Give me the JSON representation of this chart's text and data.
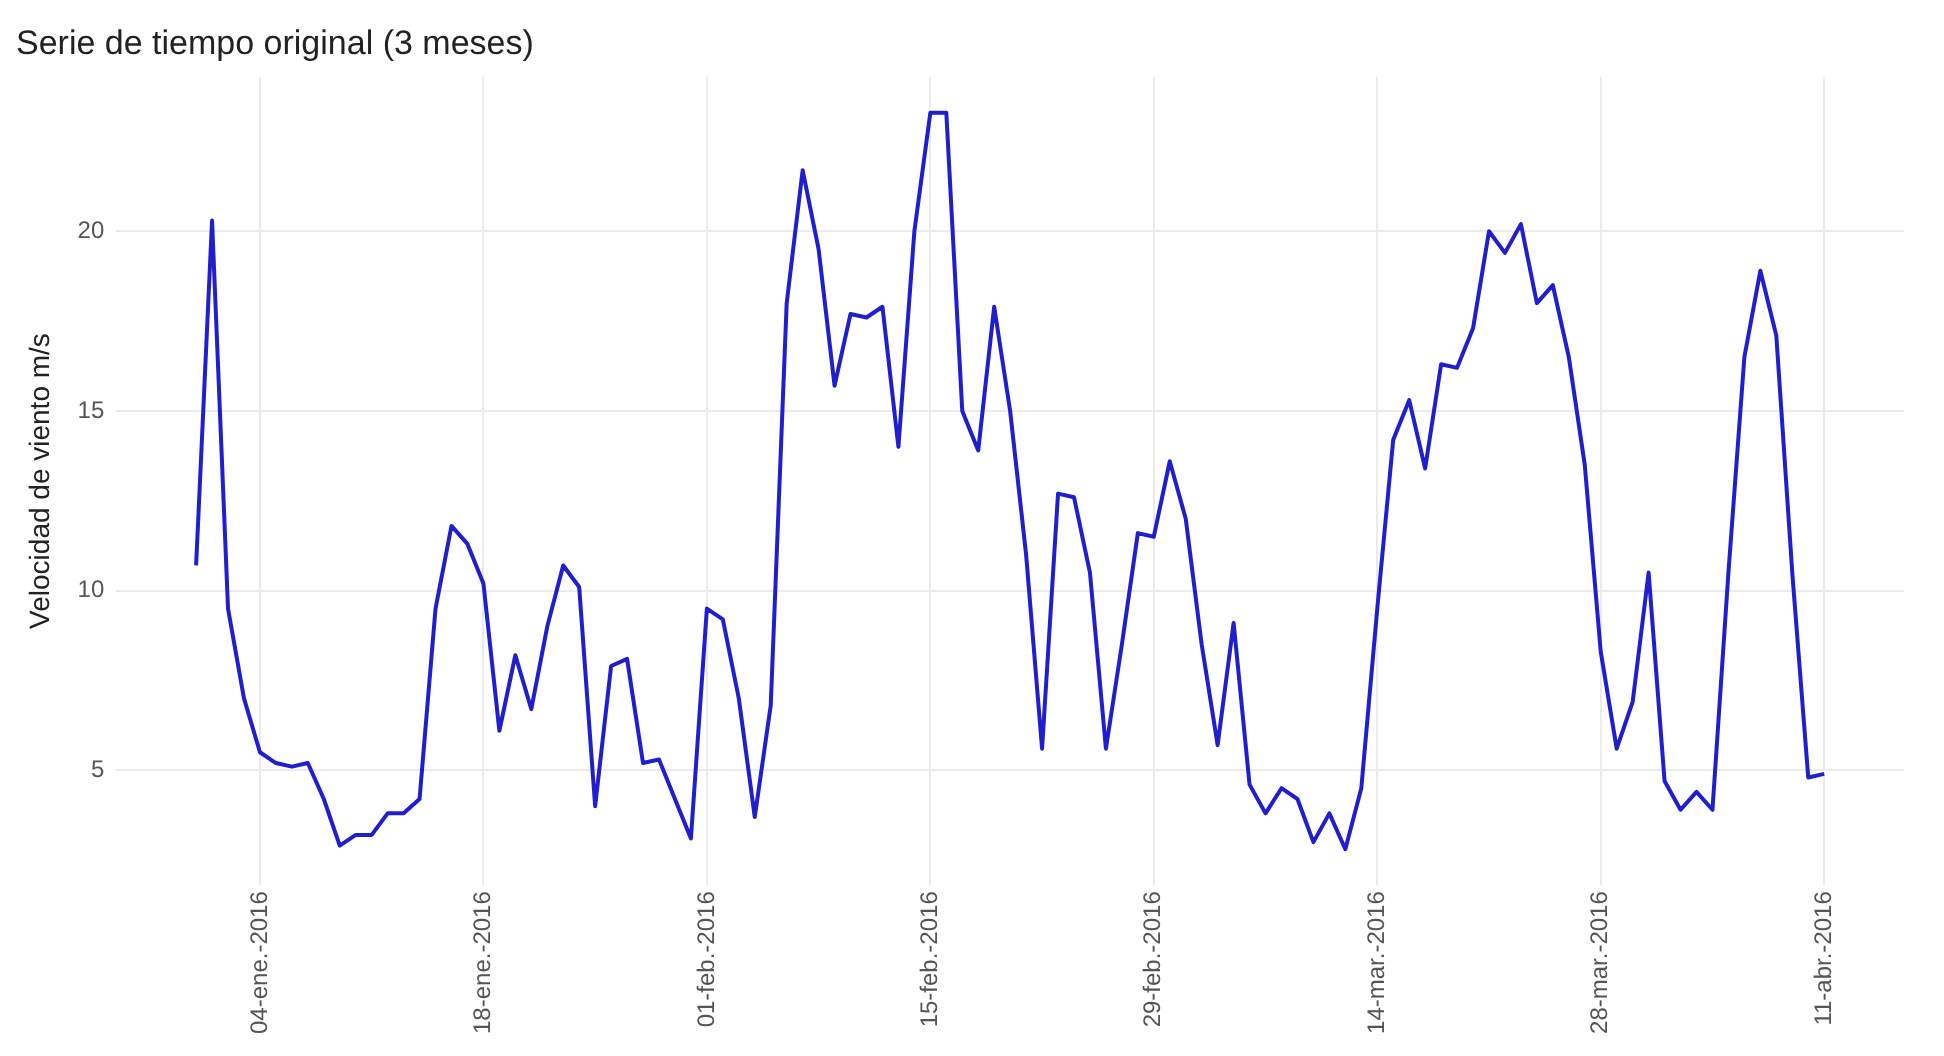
{
  "chart_data": {
    "type": "line",
    "title": "Serie de tiempo original (3 meses)",
    "ylabel": "Velocidad de viento m/s",
    "x": [
      "2015-12-31",
      "2016-01-01",
      "2016-01-02",
      "2016-01-03",
      "2016-01-04",
      "2016-01-05",
      "2016-01-06",
      "2016-01-07",
      "2016-01-08",
      "2016-01-09",
      "2016-01-10",
      "2016-01-11",
      "2016-01-12",
      "2016-01-13",
      "2016-01-14",
      "2016-01-15",
      "2016-01-16",
      "2016-01-17",
      "2016-01-18",
      "2016-01-19",
      "2016-01-20",
      "2016-01-21",
      "2016-01-22",
      "2016-01-23",
      "2016-01-24",
      "2016-01-25",
      "2016-01-26",
      "2016-01-27",
      "2016-01-28",
      "2016-01-29",
      "2016-01-30",
      "2016-01-31",
      "2016-02-01",
      "2016-02-02",
      "2016-02-03",
      "2016-02-04",
      "2016-02-05",
      "2016-02-06",
      "2016-02-07",
      "2016-02-08",
      "2016-02-09",
      "2016-02-10",
      "2016-02-11",
      "2016-02-12",
      "2016-02-13",
      "2016-02-14",
      "2016-02-15",
      "2016-02-16",
      "2016-02-17",
      "2016-02-18",
      "2016-02-19",
      "2016-02-20",
      "2016-02-21",
      "2016-02-22",
      "2016-02-23",
      "2016-02-24",
      "2016-02-25",
      "2016-02-26",
      "2016-02-27",
      "2016-02-28",
      "2016-02-29",
      "2016-03-01",
      "2016-03-02",
      "2016-03-03",
      "2016-03-04",
      "2016-03-05",
      "2016-03-06",
      "2016-03-07",
      "2016-03-08",
      "2016-03-09",
      "2016-03-10",
      "2016-03-11",
      "2016-03-12",
      "2016-03-13",
      "2016-03-14",
      "2016-03-15",
      "2016-03-16",
      "2016-03-17",
      "2016-03-18",
      "2016-03-19",
      "2016-03-20",
      "2016-03-21",
      "2016-03-22",
      "2016-03-23",
      "2016-03-24",
      "2016-03-25",
      "2016-03-26",
      "2016-03-27",
      "2016-03-28",
      "2016-03-29",
      "2016-03-30",
      "2016-03-31",
      "2016-04-01",
      "2016-04-02",
      "2016-04-03",
      "2016-04-04",
      "2016-04-05",
      "2016-04-06",
      "2016-04-07",
      "2016-04-08",
      "2016-04-09",
      "2016-04-10",
      "2016-04-11"
    ],
    "series": [
      {
        "color": "#1f1fd0",
        "values": [
          10.7,
          20.3,
          9.5,
          7.0,
          5.5,
          5.2,
          5.1,
          5.2,
          4.2,
          2.9,
          3.2,
          3.2,
          3.8,
          3.8,
          4.2,
          9.5,
          11.8,
          11.3,
          10.2,
          6.1,
          8.2,
          6.7,
          9.0,
          10.7,
          10.1,
          4.0,
          7.9,
          8.1,
          5.2,
          5.3,
          4.2,
          3.1,
          9.5,
          9.2,
          7.0,
          3.7,
          6.8,
          18.0,
          21.7,
          19.5,
          15.7,
          17.7,
          17.6,
          17.9,
          14.0,
          20.0,
          23.3,
          23.3,
          15.0,
          13.9,
          17.9,
          15.0,
          11.0,
          5.6,
          12.7,
          12.6,
          10.5,
          5.6,
          8.5,
          11.6,
          11.5,
          13.6,
          12.0,
          8.5,
          5.7,
          9.1,
          4.6,
          3.8,
          4.5,
          4.2,
          3.0,
          3.8,
          2.8,
          4.5,
          9.5,
          14.2,
          15.3,
          13.4,
          16.3,
          16.2,
          17.3,
          20.0,
          19.4,
          20.2,
          18.0,
          18.5,
          16.5,
          13.5,
          8.3,
          5.6,
          6.9,
          10.5,
          4.7,
          3.9,
          4.4,
          3.9,
          10.5,
          16.5,
          18.9,
          17.1,
          10.5,
          4.8,
          4.9
        ]
      }
    ],
    "xlim": [
      "2015-12-26",
      "2016-04-16"
    ],
    "xticks": [
      {
        "value": "2016-01-04",
        "label": "04-ene.-2016"
      },
      {
        "value": "2016-01-18",
        "label": "18-ene.-2016"
      },
      {
        "value": "2016-02-01",
        "label": "01-feb.-2016"
      },
      {
        "value": "2016-02-15",
        "label": "15-feb.-2016"
      },
      {
        "value": "2016-02-29",
        "label": "29-feb.-2016"
      },
      {
        "value": "2016-03-14",
        "label": "14-mar.-2016"
      },
      {
        "value": "2016-03-28",
        "label": "28-mar.-2016"
      },
      {
        "value": "2016-04-11",
        "label": "11-abr.-2016"
      }
    ],
    "ylim": [
      1.8,
      24.3
    ],
    "yticks": [
      5,
      10,
      15,
      20
    ],
    "grid": true,
    "marker": "none",
    "line_style": "solid",
    "legend": false
  }
}
